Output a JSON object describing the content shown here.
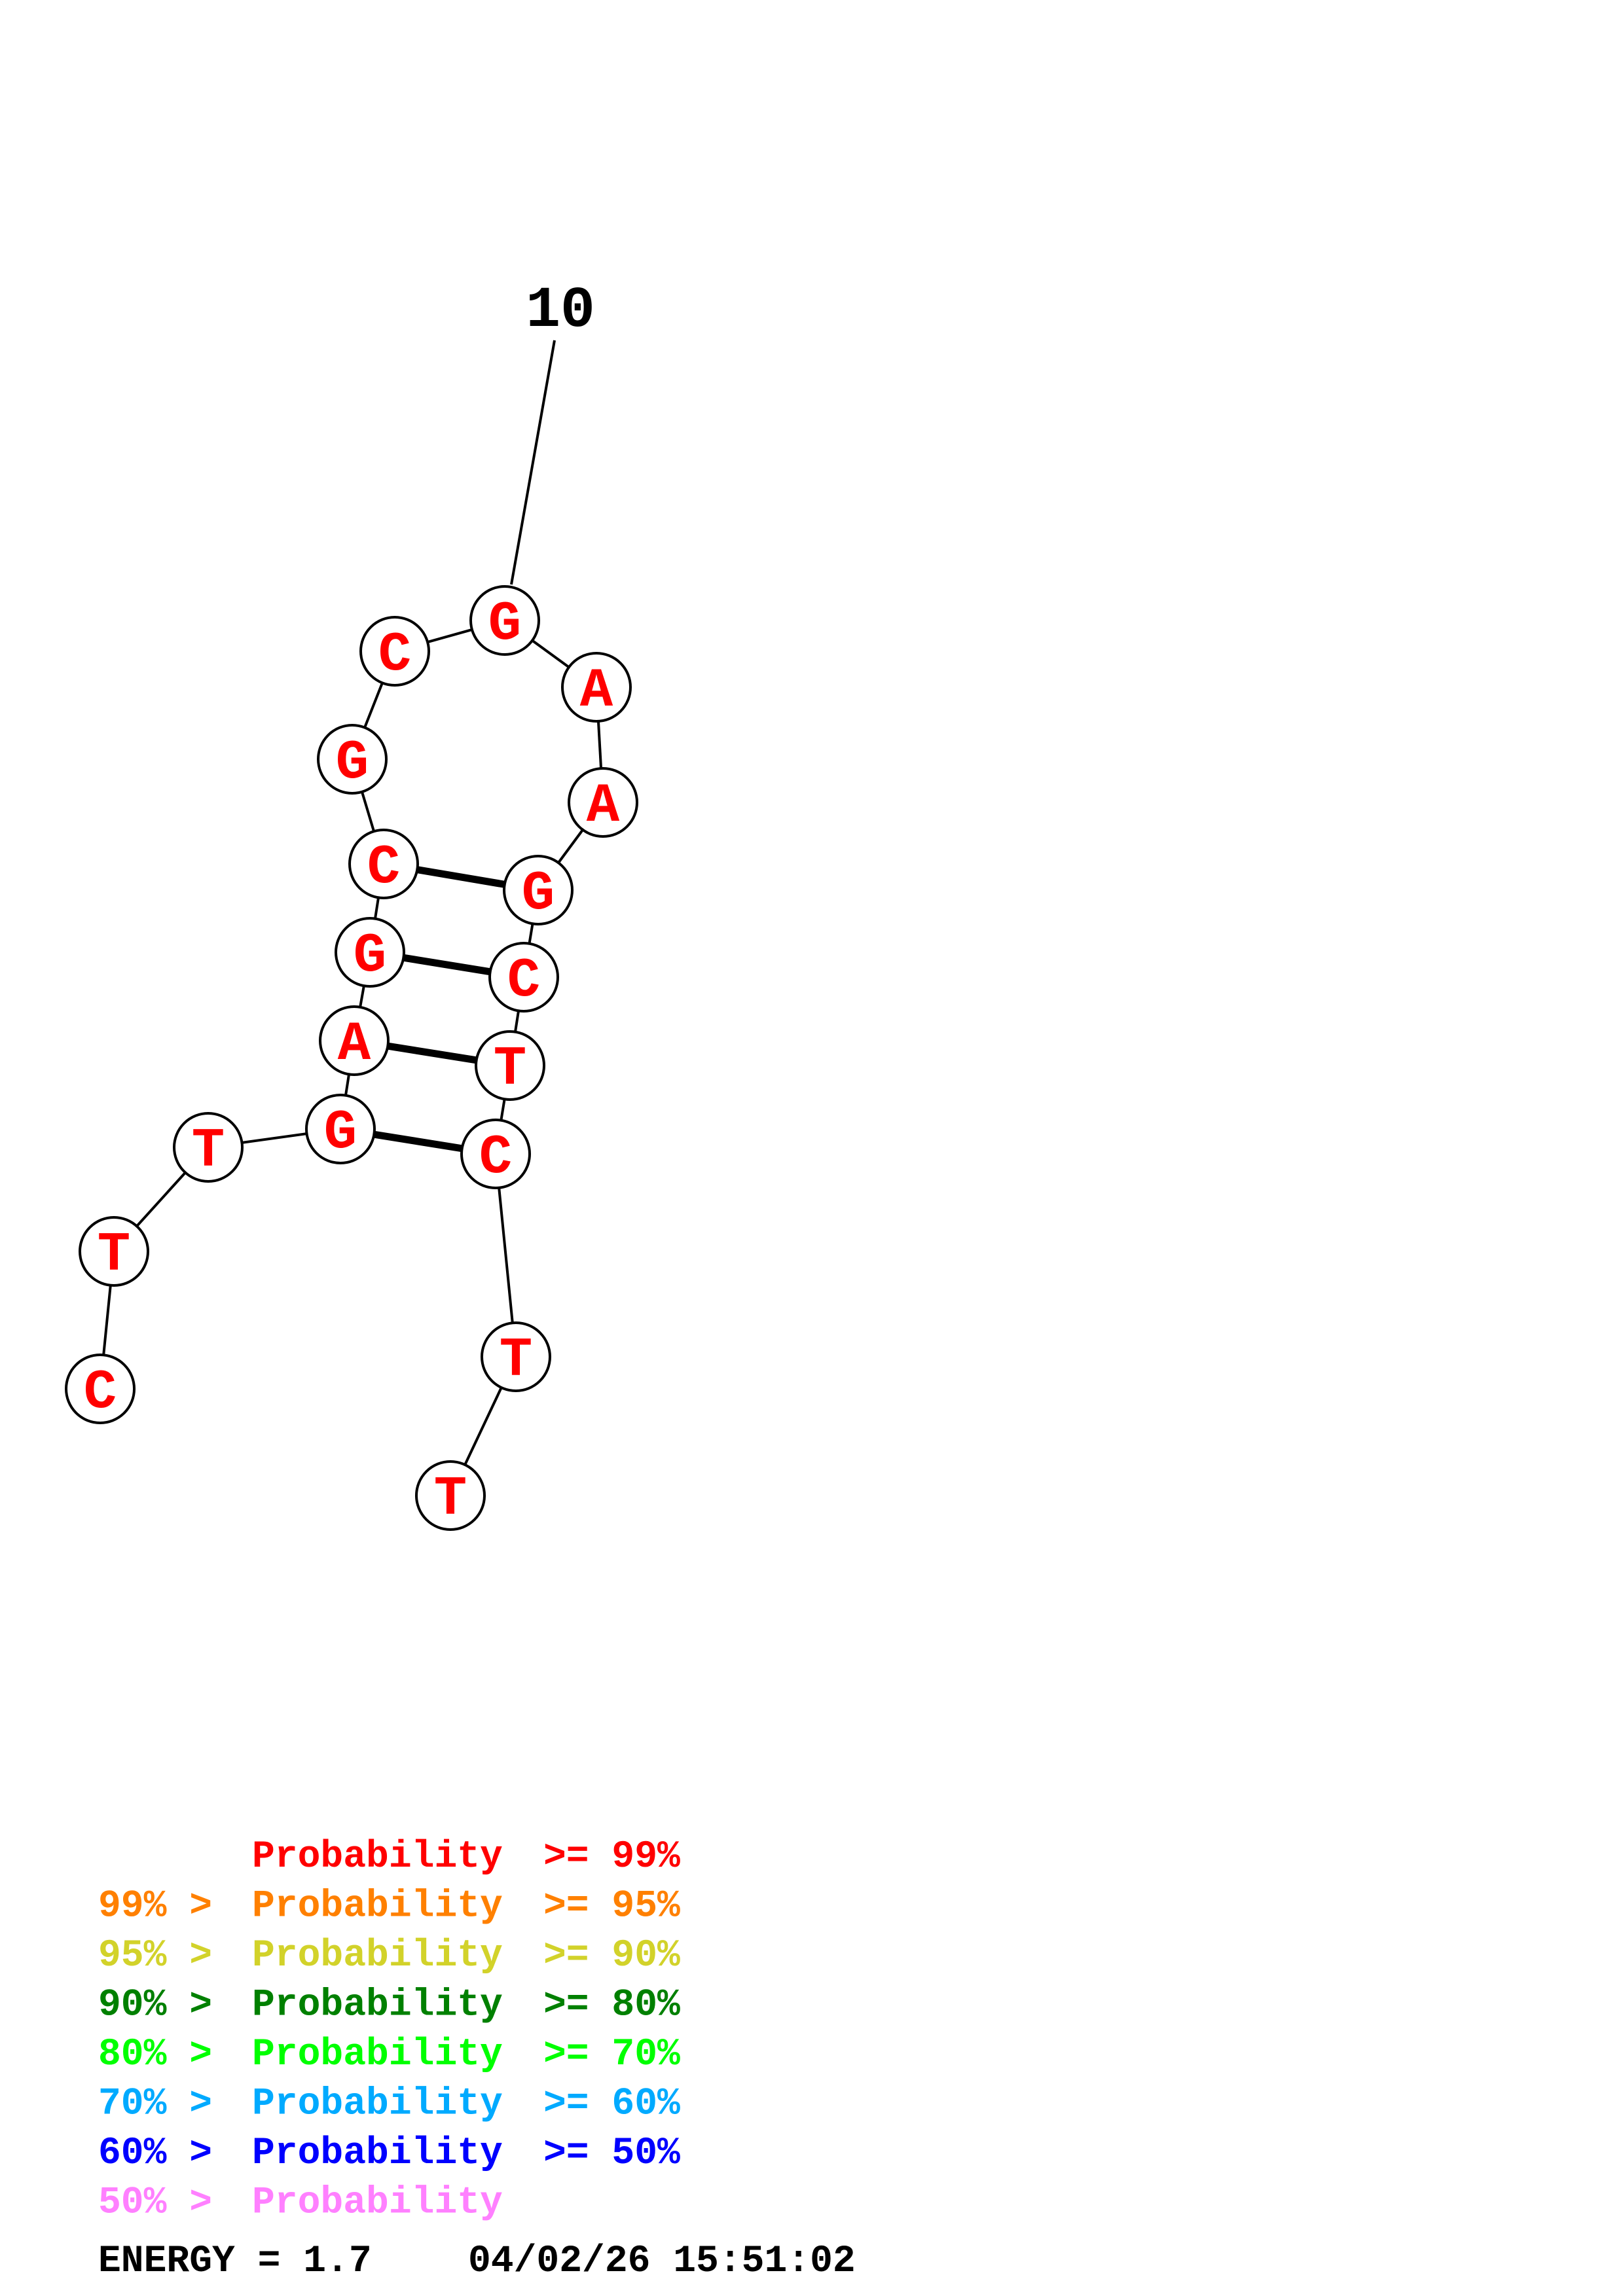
{
  "structure": {
    "position_label": "10",
    "bases": [
      {
        "letter": "C",
        "color": "#ff0000"
      },
      {
        "letter": "T",
        "color": "#ff0000"
      },
      {
        "letter": "T",
        "color": "#ff0000"
      },
      {
        "letter": "G",
        "color": "#ff0000"
      },
      {
        "letter": "A",
        "color": "#ff0000"
      },
      {
        "letter": "G",
        "color": "#ff0000"
      },
      {
        "letter": "C",
        "color": "#ff0000"
      },
      {
        "letter": "G",
        "color": "#ff0000"
      },
      {
        "letter": "C",
        "color": "#ff0000"
      },
      {
        "letter": "G",
        "color": "#ff0000"
      },
      {
        "letter": "A",
        "color": "#ff0000"
      },
      {
        "letter": "A",
        "color": "#ff0000"
      },
      {
        "letter": "G",
        "color": "#ff0000"
      },
      {
        "letter": "C",
        "color": "#ff0000"
      },
      {
        "letter": "T",
        "color": "#ff0000"
      },
      {
        "letter": "C",
        "color": "#ff0000"
      },
      {
        "letter": "T",
        "color": "#ff0000"
      },
      {
        "letter": "T",
        "color": "#ff0000"
      }
    ],
    "pairs": [
      [
        4,
        16
      ],
      [
        5,
        15
      ],
      [
        6,
        14
      ],
      [
        7,
        13
      ]
    ]
  },
  "legend": [
    {
      "prefix": "",
      "mid": "Probability",
      "suffix": ">= 99%",
      "color": "#ff0000"
    },
    {
      "prefix": "99% >",
      "mid": "Probability",
      "suffix": ">= 95%",
      "color": "#ff8000"
    },
    {
      "prefix": "95% >",
      "mid": "Probability",
      "suffix": ">= 90%",
      "color": "#d2d22a"
    },
    {
      "prefix": "90% >",
      "mid": "Probability",
      "suffix": ">= 80%",
      "color": "#008000"
    },
    {
      "prefix": "80% >",
      "mid": "Probability",
      "suffix": ">= 70%",
      "color": "#00ff00"
    },
    {
      "prefix": "70% >",
      "mid": "Probability",
      "suffix": ">= 60%",
      "color": "#00aaff"
    },
    {
      "prefix": "60% >",
      "mid": "Probability",
      "suffix": ">= 50%",
      "color": "#0000ff"
    },
    {
      "prefix": "50% >",
      "mid": "Probability",
      "suffix": "",
      "color": "#ff80ff"
    }
  ],
  "footer": {
    "energy_text": "ENERGY = 1.7",
    "timestamp": "04/02/26 15:51:02"
  }
}
